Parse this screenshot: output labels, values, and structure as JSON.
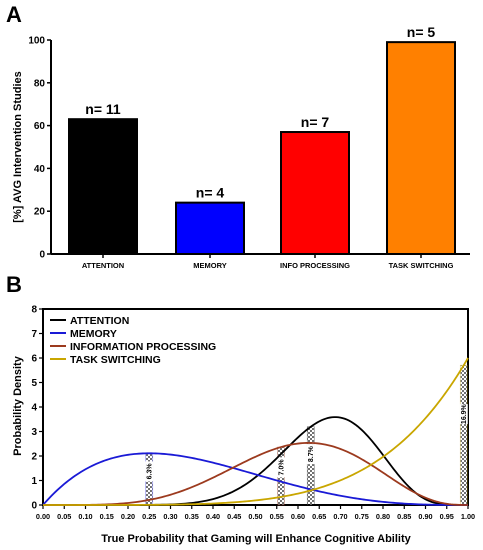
{
  "chart_data": [
    {
      "panel": "A",
      "type": "bar",
      "ylabel": "[%] AVG Intervention Studies",
      "ylim": [
        0,
        100
      ],
      "yticks": [
        "0",
        "20",
        "40",
        "60",
        "80",
        "100"
      ],
      "categories": [
        "ATTENTION",
        "MEMORY",
        "INFO PROCESSING",
        "TASK SWITCHING"
      ],
      "values": [
        63,
        24,
        57,
        99
      ],
      "bar_labels": [
        "n= 11",
        "n= 4",
        "n= 7",
        "n= 5"
      ],
      "colors": [
        "#000000",
        "#0000ff",
        "#ff0000",
        "#ff8000"
      ]
    },
    {
      "panel": "B",
      "type": "line",
      "xlabel": "True Probability that Gaming will Enhance Cognitive Ability",
      "ylabel": "Probability Density",
      "xlim": [
        0,
        1
      ],
      "ylim": [
        0,
        8
      ],
      "xticks": [
        "0.00",
        "0.05",
        "0.10",
        "0.15",
        "0.20",
        "0.25",
        "0.30",
        "0.35",
        "0.40",
        "0.45",
        "0.50",
        "0.55",
        "0.60",
        "0.65",
        "0.70",
        "0.75",
        "0.80",
        "0.85",
        "0.90",
        "0.95",
        "1.00"
      ],
      "yticks": [
        "0",
        "1",
        "2",
        "3",
        "4",
        "5",
        "6",
        "7",
        "8"
      ],
      "legend_position": "top-left",
      "series": [
        {
          "name": "ATTENTION",
          "color": "#000000",
          "alpha": 12,
          "beta": 6
        },
        {
          "name": "MEMORY",
          "color": "#1a1ad6",
          "alpha": 2,
          "beta": 4
        },
        {
          "name": "INFORMATION PROCESSING",
          "color": "#9c3a1e",
          "alpha": 6,
          "beta": 4
        },
        {
          "name": "TASK SWITCHING",
          "color": "#c9a600",
          "alpha": 6,
          "beta": 1
        }
      ],
      "intervals": [
        {
          "x": 0.25,
          "label": "6.3%",
          "color": "#1a1ad6"
        },
        {
          "x": 0.56,
          "label": "7.0%",
          "color": "#9c3a1e"
        },
        {
          "x": 0.63,
          "label": "8.7%",
          "color": "#000000"
        },
        {
          "x": 0.99,
          "label": "16.9%",
          "color": "#c9a600"
        }
      ]
    }
  ]
}
